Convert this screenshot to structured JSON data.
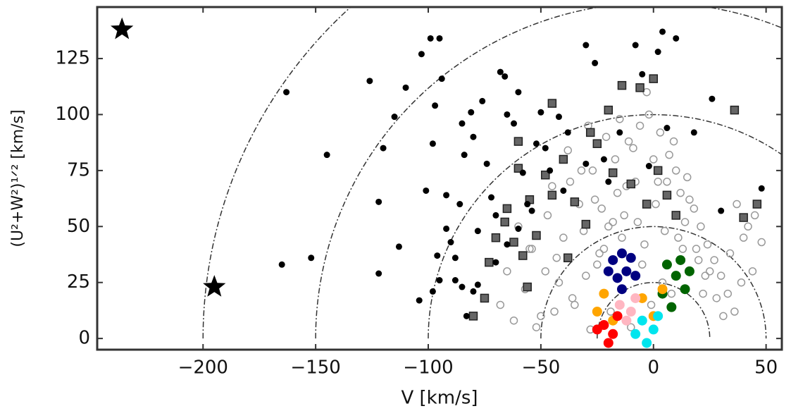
{
  "chart_data": {
    "type": "scatter",
    "xlabel": "V [km/s]",
    "ylabel": "(U²+W²)¹ᐟ² [km/s]",
    "xlim": [
      -247,
      57
    ],
    "ylim": [
      -5,
      148
    ],
    "xticks": [
      {
        "value": -200,
        "label": "−200"
      },
      {
        "value": -150,
        "label": "−150"
      },
      {
        "value": -100,
        "label": "−100"
      },
      {
        "value": -50,
        "label": "−50"
      },
      0,
      50
    ],
    "yticks": [
      0,
      25,
      50,
      75,
      100,
      125
    ],
    "circles": [
      25,
      50,
      100,
      150,
      200
    ],
    "series": [
      {
        "marker": "open",
        "color": "#999999",
        "x": [
          -68,
          -62,
          -57,
          -52,
          -48,
          -44,
          -40,
          -36,
          -33,
          -30,
          -27,
          -24,
          -21,
          -18,
          -15,
          -12,
          -9,
          -6,
          -3,
          0,
          3,
          6,
          9,
          12,
          15,
          18,
          21,
          24,
          27,
          30,
          33,
          36,
          40,
          44,
          48,
          -60,
          -54,
          -47,
          -42,
          -37,
          -31,
          -26,
          -22,
          -17,
          -13,
          -8,
          -4,
          1,
          5,
          10,
          14,
          19,
          23,
          28,
          34,
          39,
          45,
          -50,
          -43,
          -35,
          -28,
          -20,
          -11,
          -2,
          7,
          16,
          25,
          -45,
          -38,
          -29,
          -23,
          -14,
          -5,
          4,
          13,
          22,
          -32,
          -25,
          -16,
          -7,
          2,
          11,
          20,
          -19,
          -10,
          -1,
          8,
          -55,
          -65,
          31,
          37,
          42
        ],
        "y": [
          15,
          8,
          22,
          5,
          30,
          12,
          45,
          18,
          60,
          28,
          75,
          38,
          90,
          52,
          98,
          68,
          85,
          95,
          110,
          80,
          92,
          70,
          88,
          65,
          72,
          58,
          50,
          42,
          35,
          28,
          20,
          12,
          45,
          30,
          43,
          50,
          40,
          55,
          25,
          70,
          48,
          62,
          40,
          80,
          55,
          70,
          42,
          60,
          48,
          75,
          52,
          40,
          28,
          18,
          38,
          25,
          55,
          10,
          36,
          15,
          4,
          50,
          88,
          100,
          82,
          62,
          30,
          68,
          84,
          95,
          58,
          45,
          33,
          25,
          40,
          20,
          75,
          33,
          65,
          52,
          70,
          45,
          35,
          12,
          5,
          15,
          20,
          40,
          30,
          10,
          60,
          50
        ],
        "values_size": null
      },
      {
        "marker": "square",
        "color": "#666666",
        "x": [
          -80,
          -75,
          -73,
          -70,
          -66,
          -62,
          -58,
          -55,
          -52,
          -48,
          -45,
          -40,
          -38,
          -35,
          -30,
          -28,
          -25,
          -20,
          -18,
          -14,
          -10,
          -6,
          -3,
          0,
          2,
          6,
          10,
          -56,
          -60,
          -65,
          36,
          40,
          46,
          -60,
          -45
        ],
        "y": [
          10,
          18,
          34,
          45,
          52,
          43,
          37,
          62,
          46,
          73,
          64,
          80,
          36,
          61,
          51,
          92,
          87,
          102,
          74,
          113,
          69,
          112,
          60,
          116,
          75,
          64,
          55,
          23,
          76,
          58,
          102,
          54,
          60,
          88,
          105
        ]
      },
      {
        "marker": "dot",
        "color": "#000000",
        "x": [
          -163,
          -165,
          -152,
          -145,
          -126,
          -122,
          -122,
          -120,
          -115,
          -113,
          -104,
          -103,
          -101,
          -99,
          -98,
          -97,
          -95,
          -94,
          -98,
          -96,
          -95,
          -92,
          -92,
          -90,
          -88,
          -86,
          -85,
          -84,
          -81,
          -80,
          -78,
          -78,
          -76,
          -74,
          -72,
          -70,
          -68,
          -66,
          -65,
          -62,
          -60,
          -58,
          -56,
          -54,
          -50,
          -48,
          -46,
          -42,
          -38,
          -30,
          -30,
          -26,
          -22,
          -20,
          -15,
          -8,
          -5,
          -2,
          2,
          4,
          6,
          10,
          18,
          26,
          30,
          48,
          -70,
          -80,
          -85,
          -83,
          -88,
          -65,
          -60,
          -40,
          -52,
          -110
        ],
        "y": [
          110,
          33,
          36,
          82,
          115,
          61,
          29,
          85,
          99,
          41,
          17,
          127,
          66,
          134,
          87,
          104,
          134,
          116,
          21,
          37,
          26,
          64,
          49,
          43,
          36,
          60,
          96,
          82,
          101,
          90,
          48,
          24,
          106,
          78,
          63,
          55,
          119,
          117,
          100,
          96,
          110,
          74,
          60,
          57,
          101,
          85,
          75,
          99,
          92,
          131,
          78,
          123,
          80,
          70,
          92,
          131,
          118,
          77,
          128,
          137,
          94,
          134,
          92,
          107,
          57,
          67,
          34,
          21,
          23,
          10,
          26,
          42,
          49,
          66,
          87,
          112
        ]
      },
      {
        "marker": "dot",
        "color": "#000080",
        "x": [
          -18,
          -14,
          -12,
          -16,
          -10,
          -20,
          -8,
          -14
        ],
        "y": [
          35,
          38,
          30,
          27,
          36,
          30,
          28,
          22
        ]
      },
      {
        "marker": "dot",
        "color": "#006400",
        "x": [
          6,
          10,
          14,
          4,
          12,
          8,
          16
        ],
        "y": [
          33,
          28,
          22,
          20,
          35,
          14,
          30
        ]
      },
      {
        "marker": "dot",
        "color": "#ffa500",
        "x": [
          -22,
          -25,
          -5,
          0,
          -18,
          4
        ],
        "y": [
          20,
          12,
          18,
          10,
          8,
          22
        ]
      },
      {
        "marker": "dot",
        "color": "#ffb6c1",
        "x": [
          -15,
          -10,
          -8,
          -12
        ],
        "y": [
          15,
          12,
          18,
          8
        ]
      },
      {
        "marker": "dot",
        "color": "#ff0000",
        "x": [
          -22,
          -18,
          -25,
          -16,
          -20
        ],
        "y": [
          6,
          2,
          4,
          10,
          -2
        ]
      },
      {
        "marker": "dot",
        "color": "#00e5ee",
        "x": [
          -5,
          0,
          -3,
          2,
          -8
        ],
        "y": [
          8,
          4,
          -2,
          10,
          2
        ]
      },
      {
        "marker": "star",
        "color": "#000000",
        "x": [
          -236,
          -195
        ],
        "y": [
          138,
          23
        ]
      }
    ]
  }
}
